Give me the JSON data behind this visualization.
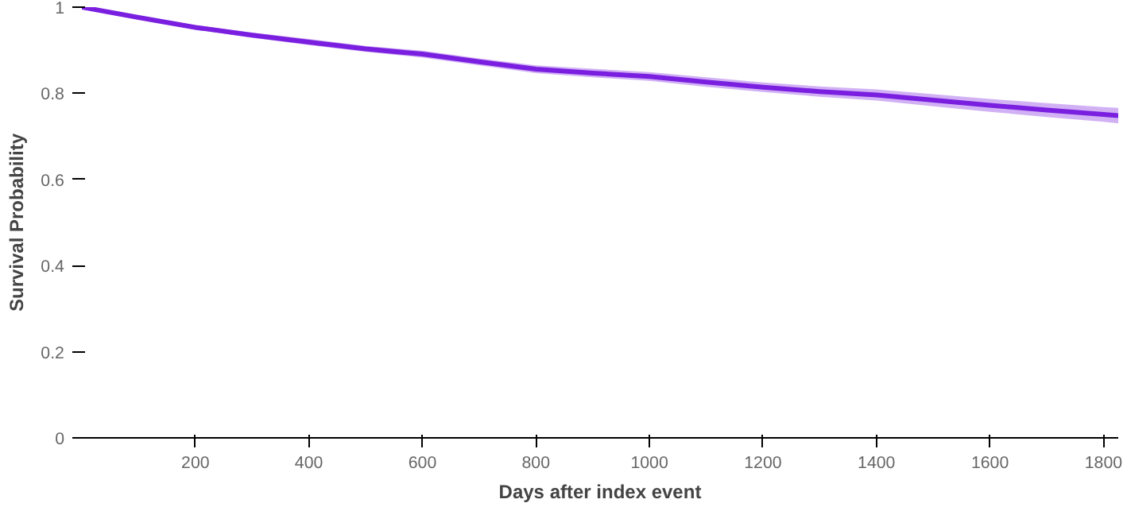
{
  "chart_data": {
    "type": "line",
    "xlabel": "Days after index event",
    "ylabel": "Survival Probability",
    "xlim": [
      0,
      1826
    ],
    "ylim": [
      0,
      1
    ],
    "xticks": [
      200,
      400,
      600,
      800,
      1000,
      1200,
      1400,
      1600,
      1800
    ],
    "yticks": [
      0,
      0.2,
      0.4,
      0.6,
      0.8,
      1
    ],
    "marker": "none",
    "line_style": "solid",
    "series": [
      {
        "color": "#7a1fe0",
        "x": [
          0,
          100,
          200,
          300,
          400,
          500,
          600,
          700,
          800,
          900,
          1000,
          1100,
          1200,
          1300,
          1400,
          1500,
          1600,
          1700,
          1800,
          1826
        ],
        "values": [
          1.0,
          0.976,
          0.953,
          0.935,
          0.919,
          0.903,
          0.891,
          0.873,
          0.856,
          0.847,
          0.839,
          0.826,
          0.814,
          0.804,
          0.796,
          0.784,
          0.772,
          0.761,
          0.751,
          0.748
        ],
        "lower": [
          1.0,
          0.972,
          0.948,
          0.929,
          0.912,
          0.896,
          0.883,
          0.865,
          0.847,
          0.837,
          0.829,
          0.815,
          0.803,
          0.792,
          0.783,
          0.77,
          0.757,
          0.745,
          0.734,
          0.73
        ],
        "upper": [
          1.0,
          0.98,
          0.958,
          0.941,
          0.926,
          0.91,
          0.899,
          0.881,
          0.865,
          0.857,
          0.849,
          0.837,
          0.825,
          0.816,
          0.809,
          0.798,
          0.787,
          0.777,
          0.768,
          0.766
        ]
      }
    ]
  }
}
